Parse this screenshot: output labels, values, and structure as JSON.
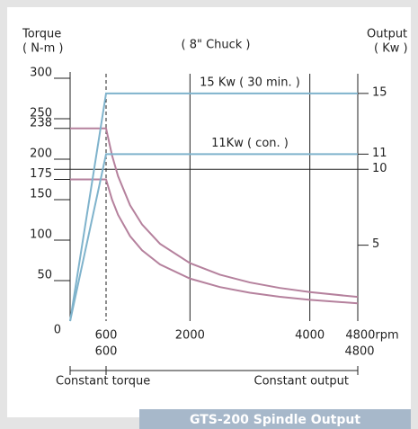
{
  "chart_data": {
    "type": "line",
    "title": "GTS-200  Spindle Output",
    "subtitle": "( 8\" Chuck )",
    "y_label": [
      "Torque",
      "( N-m )"
    ],
    "y2_label": [
      "Output",
      "( Kw )"
    ],
    "xlim": [
      0,
      4800
    ],
    "xticks": [
      600,
      2000,
      4000,
      {
        "value": 4800,
        "label": "4800rpm"
      }
    ],
    "xgrid_style": [
      "dashed",
      "solid",
      "solid",
      "solid"
    ],
    "ylim": [
      0,
      300
    ],
    "yticks": [
      0,
      50,
      100,
      150,
      175,
      200,
      238,
      250,
      300
    ],
    "y2lim": [
      0,
      16
    ],
    "y2ticks": [
      5,
      10,
      11,
      15
    ],
    "y2grid_style": [
      "none",
      "solid",
      "none",
      "none"
    ],
    "rpm_labels": [
      600,
      4800
    ],
    "regions": [
      {
        "label": "Constant torque",
        "from": 0,
        "to": 600
      },
      {
        "label": "Constant output",
        "from": 600,
        "to": 4800
      }
    ],
    "series": [
      {
        "color": "#b5819d",
        "x": [
          0,
          600,
          700,
          800,
          1000,
          1200,
          1500,
          2000,
          2500,
          3000,
          3500,
          4000,
          4800
        ],
        "values": [
          238,
          238,
          204.6,
          179,
          143.2,
          119.4,
          95.5,
          71.6,
          57.3,
          47.7,
          40.9,
          35.8,
          29.8
        ]
      },
      {
        "color": "#b5819d",
        "x": [
          0,
          600,
          700,
          800,
          1000,
          1200,
          1500,
          2000,
          2500,
          3000,
          3500,
          4000,
          4800
        ],
        "values": [
          175,
          175,
          150,
          131.3,
          105,
          87.5,
          70,
          52.5,
          42,
          35,
          30,
          26.3,
          21.9
        ]
      },
      {
        "name": "15 Kw ( 30 min. )",
        "color": "#7fb3cc",
        "axis": "y2",
        "x": [
          0,
          600,
          4800
        ],
        "values": [
          0,
          15,
          15
        ]
      },
      {
        "name": "11Kw ( con. )",
        "color": "#7fb3cc",
        "axis": "y2",
        "x": [
          0,
          600,
          4800
        ],
        "values": [
          0,
          11,
          11
        ]
      }
    ]
  }
}
